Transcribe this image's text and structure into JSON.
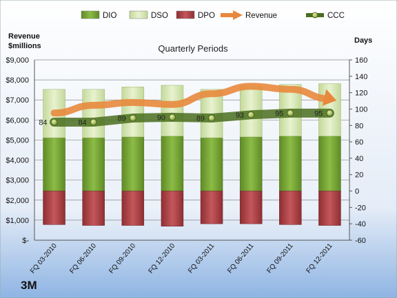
{
  "chart_data": {
    "type": "bar",
    "title": "Quarterly Periods",
    "company": "3M",
    "left_axis_label": [
      "Revenue",
      "$millions"
    ],
    "right_axis_label": "Days",
    "categories": [
      "FQ 03-2010",
      "FQ 06-2010",
      "FQ 09-2010",
      "FQ 12-2010",
      "FQ 03-2011",
      "FQ 06-2011",
      "FQ 09-2011",
      "FQ 12-2011"
    ],
    "left_ticks": [
      "$-",
      "$1,000",
      "$2,000",
      "$3,000",
      "$4,000",
      "$5,000",
      "$6,000",
      "$7,000",
      "$8,000",
      "$9,000"
    ],
    "right_ticks": [
      "-60",
      "-40",
      "-20",
      "0",
      "20",
      "40",
      "60",
      "80",
      "100",
      "120",
      "140",
      "160"
    ],
    "left_ylim": [
      0,
      9000
    ],
    "right_ylim": [
      -60,
      160
    ],
    "legend_position": "top",
    "series": [
      {
        "name": "DIO",
        "type": "stacked-bar",
        "color": "#77a33a",
        "values": [
          65,
          65,
          66,
          67,
          65,
          66,
          67,
          67
        ]
      },
      {
        "name": "DSO",
        "type": "stacked-bar",
        "color": "#d8e8b2",
        "values": [
          59,
          59,
          61,
          62,
          59,
          62,
          63,
          64
        ]
      },
      {
        "name": "DPO",
        "type": "negative-bar",
        "color": "#b2464b",
        "values": [
          -41,
          -42,
          -42,
          -43,
          -40,
          -40,
          -41,
          -42
        ]
      },
      {
        "name": "Revenue",
        "type": "line",
        "axis": "left",
        "color": "#e8883c",
        "values": [
          6348,
          6731,
          6874,
          6777,
          7311,
          7680,
          7531,
          7054
        ]
      },
      {
        "name": "CCC",
        "type": "line",
        "axis": "right",
        "color": "#4a6e1f",
        "values": [
          84,
          84,
          89,
          90,
          89,
          93,
          95,
          95
        ]
      }
    ],
    "ccc_labels": [
      "84",
      "84",
      "89",
      "90",
      "89",
      "93",
      "95",
      "95"
    ]
  }
}
